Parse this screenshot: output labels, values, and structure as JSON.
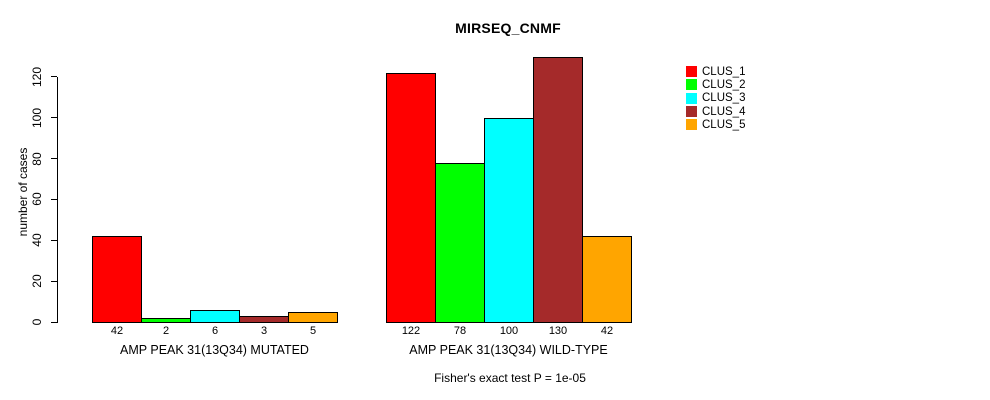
{
  "title": "MIRSEQ_CNMF",
  "y_axis": {
    "label": "number of cases",
    "ticks": [
      0,
      20,
      40,
      60,
      80,
      100,
      120
    ]
  },
  "footnote": "Fisher's exact test P = 1e-05",
  "legend": {
    "position": "right",
    "items": [
      {
        "label": "CLUS_1",
        "color": "#FF0000"
      },
      {
        "label": "CLUS_2",
        "color": "#00FF00"
      },
      {
        "label": "CLUS_3",
        "color": "#00FFFF"
      },
      {
        "label": "CLUS_4",
        "color": "#A52A2A"
      },
      {
        "label": "CLUS_5",
        "color": "#FFA500"
      }
    ]
  },
  "chart_data": {
    "type": "bar",
    "title": "MIRSEQ_CNMF",
    "xlabel": "",
    "ylabel": "number of cases",
    "ylim": [
      0,
      131
    ],
    "yticks": [
      0,
      20,
      40,
      60,
      80,
      100,
      120
    ],
    "grid": false,
    "legend_position": "right",
    "series": [
      "CLUS_1",
      "CLUS_2",
      "CLUS_3",
      "CLUS_4",
      "CLUS_5"
    ],
    "colors": [
      "#FF0000",
      "#00FF00",
      "#00FFFF",
      "#A52A2A",
      "#FFA500"
    ],
    "groups": [
      {
        "label": "AMP PEAK 31(13Q34) MUTATED",
        "values": [
          42,
          2,
          6,
          3,
          5
        ]
      },
      {
        "label": "AMP PEAK 31(13Q34) WILD-TYPE",
        "values": [
          122,
          78,
          100,
          130,
          42
        ]
      }
    ],
    "bar_value_labels_shown": true,
    "annotation": "Fisher's exact test P = 1e-05"
  }
}
